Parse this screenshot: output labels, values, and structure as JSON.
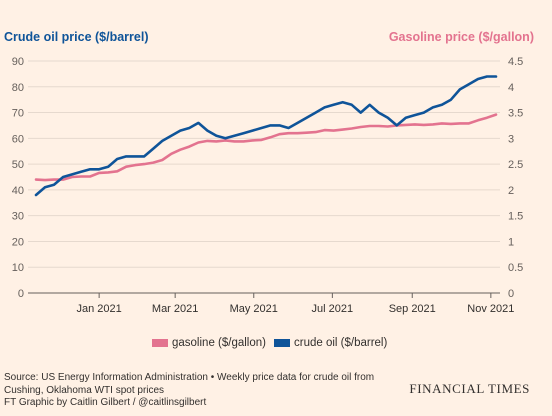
{
  "chart_data": {
    "type": "line",
    "left_axis_title": "Crude oil price ($/barrel)",
    "right_axis_title": "Gasoline price ($/gallon)",
    "left_axis": {
      "min": 0,
      "max": 90,
      "ticks": [
        "0",
        "10",
        "20",
        "30",
        "40",
        "50",
        "60",
        "70",
        "80",
        "90"
      ]
    },
    "right_axis": {
      "min": 0,
      "max": 4.5,
      "ticks": [
        "0",
        "0.5",
        "1",
        "1.5",
        "2",
        "2.5",
        "3",
        "3.5",
        "4",
        "4.5"
      ]
    },
    "x_axis": {
      "start": "2020-11-13",
      "end": "2021-11-05",
      "tick_labels": [
        "Jan 2021",
        "Mar 2021",
        "May 2021",
        "Jul 2021",
        "Sep 2021",
        "Nov 2021"
      ],
      "tick_dates": [
        "2021-01-01",
        "2021-03-01",
        "2021-05-01",
        "2021-07-01",
        "2021-09-01",
        "2021-11-01"
      ]
    },
    "grid": "horizontal",
    "legend_position": "bottom",
    "series": [
      {
        "name": "gasoline ($/gallon)",
        "axis": "right",
        "color": "#e3738f",
        "x": [
          "2020-11-13",
          "2020-11-20",
          "2020-11-27",
          "2020-12-04",
          "2020-12-11",
          "2020-12-18",
          "2020-12-25",
          "2021-01-01",
          "2021-01-08",
          "2021-01-15",
          "2021-01-22",
          "2021-01-29",
          "2021-02-05",
          "2021-02-12",
          "2021-02-19",
          "2021-02-26",
          "2021-03-05",
          "2021-03-12",
          "2021-03-19",
          "2021-03-26",
          "2021-04-02",
          "2021-04-09",
          "2021-04-16",
          "2021-04-23",
          "2021-04-30",
          "2021-05-07",
          "2021-05-14",
          "2021-05-21",
          "2021-05-28",
          "2021-06-04",
          "2021-06-11",
          "2021-06-18",
          "2021-06-25",
          "2021-07-02",
          "2021-07-09",
          "2021-07-16",
          "2021-07-23",
          "2021-07-30",
          "2021-08-06",
          "2021-08-13",
          "2021-08-20",
          "2021-08-27",
          "2021-09-03",
          "2021-09-10",
          "2021-09-17",
          "2021-09-24",
          "2021-10-01",
          "2021-10-08",
          "2021-10-15",
          "2021-10-22",
          "2021-10-29",
          "2021-11-05"
        ],
        "values": [
          2.2,
          2.19,
          2.2,
          2.2,
          2.25,
          2.26,
          2.26,
          2.33,
          2.34,
          2.36,
          2.45,
          2.48,
          2.5,
          2.53,
          2.58,
          2.7,
          2.78,
          2.84,
          2.92,
          2.95,
          2.94,
          2.96,
          2.94,
          2.94,
          2.96,
          2.97,
          3.02,
          3.08,
          3.1,
          3.1,
          3.11,
          3.12,
          3.16,
          3.15,
          3.17,
          3.19,
          3.22,
          3.24,
          3.24,
          3.23,
          3.25,
          3.26,
          3.27,
          3.26,
          3.27,
          3.29,
          3.28,
          3.29,
          3.29,
          3.35,
          3.4,
          3.46
        ]
      },
      {
        "name": "crude oil ($/barrel)",
        "axis": "left",
        "color": "#0f5499",
        "x": [
          "2020-11-13",
          "2020-11-20",
          "2020-11-27",
          "2020-12-04",
          "2020-12-11",
          "2020-12-18",
          "2020-12-25",
          "2021-01-01",
          "2021-01-08",
          "2021-01-15",
          "2021-01-22",
          "2021-01-29",
          "2021-02-05",
          "2021-02-12",
          "2021-02-19",
          "2021-02-26",
          "2021-03-05",
          "2021-03-12",
          "2021-03-19",
          "2021-03-26",
          "2021-04-02",
          "2021-04-09",
          "2021-04-16",
          "2021-04-23",
          "2021-04-30",
          "2021-05-07",
          "2021-05-14",
          "2021-05-21",
          "2021-05-28",
          "2021-06-04",
          "2021-06-11",
          "2021-06-18",
          "2021-06-25",
          "2021-07-02",
          "2021-07-09",
          "2021-07-16",
          "2021-07-23",
          "2021-07-30",
          "2021-08-06",
          "2021-08-13",
          "2021-08-20",
          "2021-08-27",
          "2021-09-03",
          "2021-09-10",
          "2021-09-17",
          "2021-09-24",
          "2021-10-01",
          "2021-10-08",
          "2021-10-15",
          "2021-10-22",
          "2021-10-29",
          "2021-11-05"
        ],
        "values": [
          38,
          41,
          42,
          45,
          46,
          47,
          48,
          48,
          49,
          52,
          53,
          53,
          53,
          56,
          59,
          61,
          63,
          64,
          66,
          63,
          61,
          60,
          61,
          62,
          63,
          64,
          65,
          65,
          64,
          66,
          68,
          70,
          72,
          73,
          74,
          73,
          70,
          73,
          70,
          68,
          65,
          68,
          69,
          70,
          72,
          73,
          75,
          79,
          81,
          83,
          84,
          84
        ]
      }
    ]
  },
  "legend": {
    "gasoline": "gasoline ($/gallon)",
    "crude": "crude oil ($/barrel)"
  },
  "footer": {
    "source": "Source: US Energy Information Administration • Weekly price data for crude oil from Cushing, Oklahoma WTI spot prices",
    "credit": "FT Graphic by Caitlin Gilbert / @caitlinsgilbert",
    "brand": "FINANCIAL TIMES"
  },
  "colors": {
    "background": "#fff1e5",
    "left_axis_title": "#0f5499",
    "right_axis_title": "#e3738f"
  }
}
